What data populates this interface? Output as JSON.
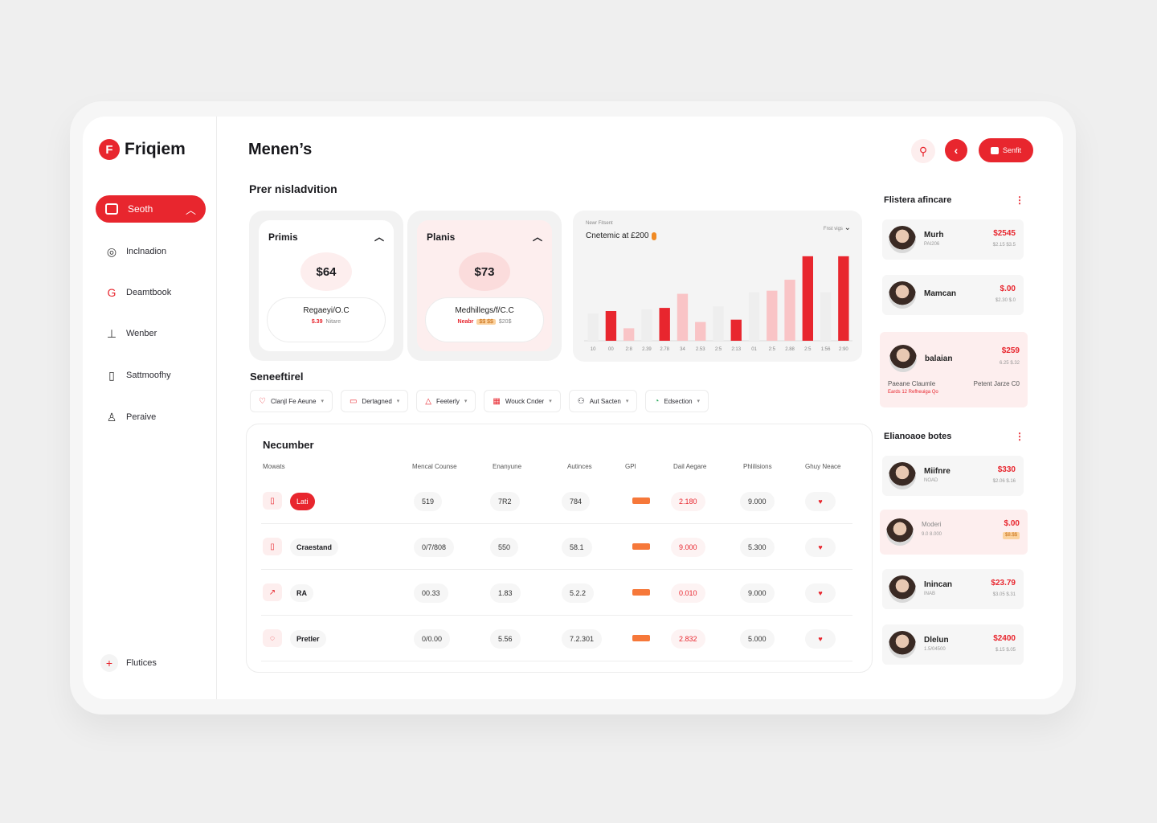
{
  "brand": {
    "name": "Friqiem",
    "mark": "F"
  },
  "sidebar": {
    "active": {
      "label": "Seoth"
    },
    "items": [
      {
        "label": "Inclnadion",
        "icon": "link-icon"
      },
      {
        "label": "Deamtbook",
        "icon": "google-icon"
      },
      {
        "label": "Wenber",
        "icon": "pin-icon"
      },
      {
        "label": "Sattmoofhy",
        "icon": "phone-icon"
      },
      {
        "label": "Peraive",
        "icon": "person-icon"
      }
    ],
    "footer": {
      "label": "Flutices"
    }
  },
  "header": {
    "title": "Menen’s",
    "primary_label": "Senfit"
  },
  "section_title": "Prer nisladvition",
  "plans": [
    {
      "name": "Primis",
      "price": "$64",
      "line1": "Regaeyi/O.C",
      "line2_em": "$.39",
      "line2": "Nitare"
    },
    {
      "name": "Planis",
      "price": "$73",
      "line1": "Medhillegs/f/C.C",
      "line2_em": "Neabr",
      "tag": "$$ $$",
      "line2": "$20$"
    }
  ],
  "chart_data": {
    "type": "bar",
    "small_label": "Newr Fitsent",
    "title": "Cnetemic at £200",
    "control_small": "Fnst\nvigs",
    "categories": [
      "10",
      "00",
      "2:8",
      "2.39",
      "2.78",
      "34",
      "2.53",
      "2:5",
      "2:13",
      "01",
      "2:5",
      "2.88",
      "2:5",
      "1:56",
      "2:90"
    ],
    "values": [
      35,
      38,
      16,
      40,
      42,
      60,
      24,
      44,
      27,
      62,
      64,
      78,
      108,
      62,
      108
    ],
    "colors": [
      "#eeeeee",
      "#e8262e",
      "#f9c4c6",
      "#eeeeee",
      "#e8262e",
      "#f9c4c6",
      "#f9c4c6",
      "#eeeeee",
      "#e8262e",
      "#eeeeee",
      "#f9c4c6",
      "#f9c4c6",
      "#e8262e",
      "#eeeeee",
      "#e8262e"
    ],
    "ylim": [
      0,
      115
    ]
  },
  "filters": {
    "title": "Seneeftirel",
    "chips": [
      {
        "label": "Clanjl Fe Aeune",
        "icon": "♡"
      },
      {
        "label": "Dertagned",
        "icon": "▭"
      },
      {
        "label": "Feeterly",
        "icon": "△"
      },
      {
        "label": "Wouck Cnder",
        "icon": "▦"
      },
      {
        "label": "Aut Sacten",
        "icon": "⚇"
      },
      {
        "label": "Edsection",
        "icon": "◔"
      }
    ]
  },
  "table": {
    "title": "Necumber",
    "headers": [
      "Mowats",
      "Mencal Counse",
      "Enanyune",
      "Autinces",
      "GPI",
      "Dail Aegare",
      "Phlilisions",
      "Ghuy Neace"
    ],
    "rows": [
      {
        "name": "Lati",
        "badge": true,
        "icon": "▯",
        "c1": "519",
        "c2": "7R2",
        "c3": "784",
        "c5": "2.180",
        "c6": "9.000"
      },
      {
        "name": "Craestand",
        "badge": false,
        "icon": "▯",
        "c1": "0/7/808",
        "c2": "550",
        "c3": "58.1",
        "c5": "9.000",
        "c6": "5.300"
      },
      {
        "name": "RA",
        "badge": false,
        "icon": "↗",
        "c1": "00.33",
        "c2": "1.83",
        "c3": "5.2.2",
        "c5": "0.010",
        "c6": "9.000"
      },
      {
        "name": "Pretler",
        "badge": false,
        "icon": "◌",
        "c1": "0/0.00",
        "c2": "5.56",
        "c3": "7.2.301",
        "c5": "2.832",
        "c6": "5.000"
      }
    ]
  },
  "right_panel": {
    "section1_title": "Flistera afincare",
    "section2_title": "Elianoaoe botes",
    "cards1": [
      {
        "name": "Murh",
        "sub": "PAI206",
        "amount": "$2545",
        "amount_sub": "$2.15 $3.5"
      },
      {
        "name": "Mamcan",
        "sub": "",
        "amount": "$.00",
        "amount_sub": "$2.30 $.0"
      },
      {
        "name": "balaian",
        "sub": "",
        "amount": "$259",
        "amount_sub": "6.25 $.32",
        "line1": "Paeane Claumle",
        "line2": "Eards 12 Refheuiga Qo",
        "line_right": "Petent Jarze C0"
      }
    ],
    "cards2": [
      {
        "name": "Miifnre",
        "sub": "NOAD",
        "amount": "$330",
        "amount_sub": "$2.06 $.16"
      },
      {
        "name": "Moderi",
        "sub": "9.0 8.000",
        "amount": "$.00",
        "tag": "$8.$$"
      },
      {
        "name": "Inincan",
        "sub": "INAB",
        "amount": "$23.79",
        "amount_sub": "$3.05 $.31"
      },
      {
        "name": "Dlelun",
        "sub": "1.5/04500",
        "amount": "$2400",
        "amount_sub": "$.15 $.05"
      }
    ]
  }
}
